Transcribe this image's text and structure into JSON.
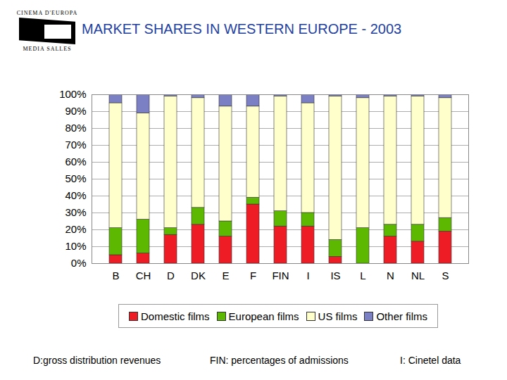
{
  "header": {
    "logo": [
      "CINEMA D'EUROPA",
      "MEDIA SALLES"
    ]
  },
  "chart_data": {
    "type": "bar",
    "stacked": true,
    "title": "MARKET SHARES IN WESTERN EUROPE - 2003",
    "categories": [
      "B",
      "CH",
      "D",
      "DK",
      "E",
      "F",
      "FIN",
      "I",
      "IS",
      "L",
      "N",
      "NL",
      "S"
    ],
    "series": [
      {
        "name": "Domestic films",
        "color": "#ee1c25",
        "values": [
          5,
          6,
          17,
          23,
          16,
          35,
          22,
          22,
          4,
          0,
          16,
          13,
          19
        ]
      },
      {
        "name": "European films",
        "color": "#5cb800",
        "values": [
          16,
          20,
          4,
          10,
          9,
          4,
          9,
          8,
          10,
          21,
          7,
          10,
          8
        ]
      },
      {
        "name": "US films",
        "color": "#ffffcc",
        "values": [
          74,
          63,
          78,
          65,
          68,
          54,
          68,
          65,
          85,
          77,
          76,
          76,
          71
        ]
      },
      {
        "name": "Other films",
        "color": "#7b7fc4",
        "values": [
          5,
          11,
          1,
          2,
          7,
          7,
          1,
          5,
          1,
          2,
          1,
          1,
          2
        ]
      }
    ],
    "ylim": [
      0,
      100
    ],
    "yticks": [
      {
        "value": 0,
        "label": "0%"
      },
      {
        "value": 10,
        "label": "10%"
      },
      {
        "value": 20,
        "label": "20%"
      },
      {
        "value": 30,
        "label": "30%"
      },
      {
        "value": 40,
        "label": "40%"
      },
      {
        "value": 50,
        "label": "50%"
      },
      {
        "value": 60,
        "label": "60%"
      },
      {
        "value": 70,
        "label": "70%"
      },
      {
        "value": 80,
        "label": "80%"
      },
      {
        "value": 90,
        "label": "90%"
      },
      {
        "value": 100,
        "label": "100%"
      }
    ],
    "grid": true,
    "legend": "bottom",
    "annotations": [
      "D:gross distribution revenues",
      "FIN: percentages of admissions",
      "I: Cinetel data"
    ]
  }
}
